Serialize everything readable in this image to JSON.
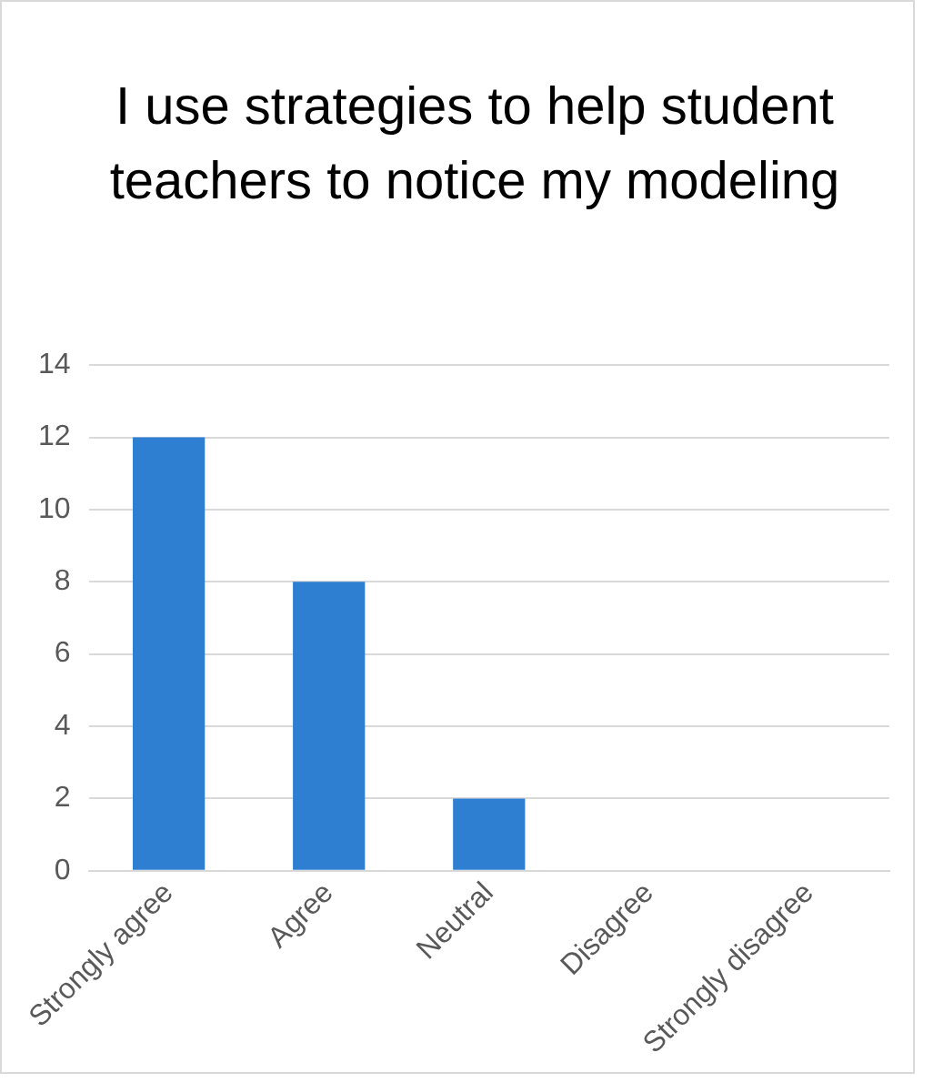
{
  "chart_data": {
    "type": "bar",
    "title": "I use strategies to help student teachers to notice my modeling",
    "categories": [
      "Strongly agree",
      "Agree",
      "Neutral",
      "Disagree",
      "Strongly disagree"
    ],
    "values": [
      12,
      8,
      2,
      0,
      0
    ],
    "color": "#2e7fd1",
    "ylim": [
      0,
      14
    ],
    "yticks": [
      0,
      2,
      4,
      6,
      8,
      10,
      12,
      14
    ],
    "grid": "y",
    "legend": false
  }
}
